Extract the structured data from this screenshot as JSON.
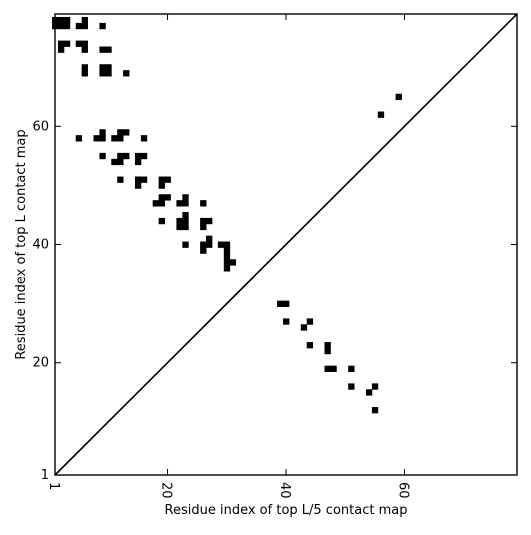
{
  "chart_data": {
    "type": "heatmap",
    "xlabel": "Residue index of top L/5 contact map",
    "ylabel": "Residue index of top L contact map",
    "xlim": [
      1,
      79
    ],
    "ylim": [
      1,
      79
    ],
    "x_ticks": [
      1,
      20,
      40,
      60
    ],
    "y_ticks": [
      1,
      20,
      40,
      60
    ],
    "diagonal": true,
    "grid": false,
    "colors": {
      "contact": "#000000",
      "background": "#ffffff"
    },
    "upper_triangle_contacts": [
      [
        1,
        78
      ],
      [
        2,
        78
      ],
      [
        3,
        78
      ],
      [
        1,
        77
      ],
      [
        2,
        77
      ],
      [
        3,
        77
      ],
      [
        5,
        77
      ],
      [
        6,
        77
      ],
      [
        9,
        77
      ],
      [
        6,
        78
      ],
      [
        2,
        74
      ],
      [
        3,
        74
      ],
      [
        5,
        74
      ],
      [
        6,
        74
      ],
      [
        2,
        73
      ],
      [
        6,
        73
      ],
      [
        9,
        73
      ],
      [
        10,
        73
      ],
      [
        6,
        70
      ],
      [
        9,
        70
      ],
      [
        10,
        70
      ],
      [
        6,
        69
      ],
      [
        9,
        69
      ],
      [
        10,
        69
      ],
      [
        13,
        69
      ],
      [
        5,
        58
      ],
      [
        8,
        58
      ],
      [
        9,
        58
      ],
      [
        9,
        59
      ],
      [
        11,
        58
      ],
      [
        12,
        58
      ],
      [
        12,
        59
      ],
      [
        13,
        59
      ],
      [
        16,
        58
      ],
      [
        9,
        55
      ],
      [
        11,
        54
      ],
      [
        12,
        54
      ],
      [
        12,
        55
      ],
      [
        13,
        55
      ],
      [
        15,
        54
      ],
      [
        15,
        55
      ],
      [
        16,
        55
      ],
      [
        12,
        51
      ],
      [
        15,
        51
      ],
      [
        16,
        51
      ],
      [
        15,
        50
      ],
      [
        19,
        51
      ],
      [
        20,
        51
      ],
      [
        19,
        50
      ],
      [
        18,
        47
      ],
      [
        19,
        47
      ],
      [
        19,
        48
      ],
      [
        20,
        48
      ],
      [
        22,
        47
      ],
      [
        23,
        47
      ],
      [
        23,
        48
      ],
      [
        26,
        47
      ],
      [
        19,
        44
      ],
      [
        22,
        44
      ],
      [
        23,
        44
      ],
      [
        22,
        43
      ],
      [
        23,
        43
      ],
      [
        23,
        45
      ],
      [
        26,
        44
      ],
      [
        27,
        44
      ],
      [
        26,
        43
      ],
      [
        23,
        40
      ],
      [
        26,
        40
      ],
      [
        26,
        39
      ],
      [
        27,
        40
      ],
      [
        27,
        41
      ],
      [
        29,
        40
      ],
      [
        30,
        40
      ],
      [
        30,
        39
      ],
      [
        30,
        38
      ],
      [
        30,
        37
      ],
      [
        31,
        37
      ],
      [
        30,
        36
      ]
    ],
    "lower_triangle_contacts": [
      [
        59,
        65
      ],
      [
        56,
        62
      ],
      [
        39,
        30
      ],
      [
        40,
        30
      ],
      [
        40,
        27
      ],
      [
        43,
        26
      ],
      [
        44,
        27
      ],
      [
        44,
        23
      ],
      [
        47,
        23
      ],
      [
        47,
        22
      ],
      [
        47,
        19
      ],
      [
        48,
        19
      ],
      [
        51,
        19
      ],
      [
        51,
        16
      ],
      [
        54,
        15
      ],
      [
        55,
        16
      ],
      [
        55,
        12
      ]
    ]
  }
}
